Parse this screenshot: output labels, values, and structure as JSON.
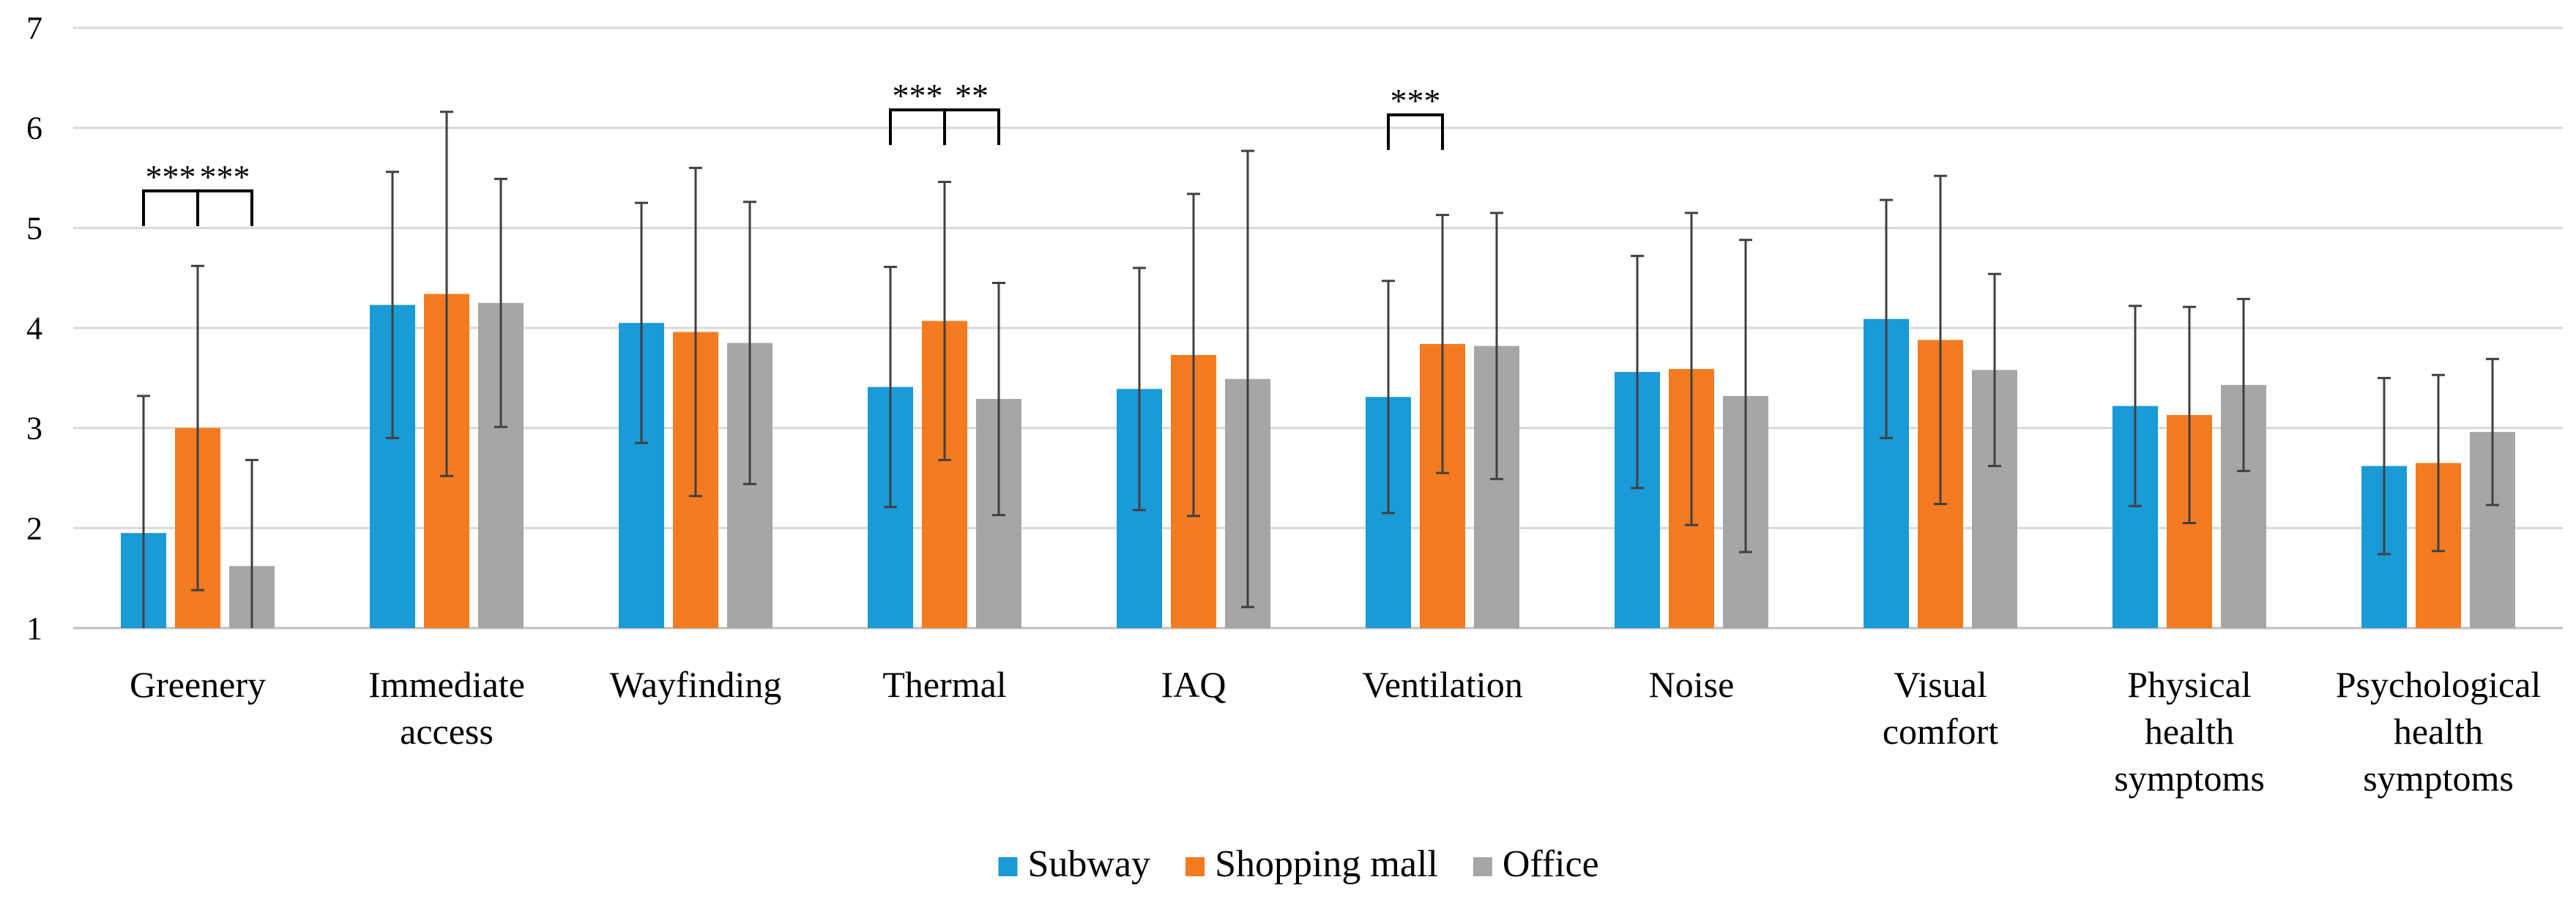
{
  "chart_data": {
    "type": "bar",
    "title": "",
    "xlabel": "",
    "ylabel": "",
    "ylim": [
      1,
      7
    ],
    "yticks": [
      1,
      2,
      3,
      4,
      5,
      6,
      7
    ],
    "grid": true,
    "legend_position": "bottom",
    "categories": [
      [
        "Greenery"
      ],
      [
        "Immediate",
        "access"
      ],
      [
        "Wayfinding"
      ],
      [
        "Thermal"
      ],
      [
        "IAQ"
      ],
      [
        "Ventilation"
      ],
      [
        "Noise"
      ],
      [
        "Visual",
        "comfort"
      ],
      [
        "Physical",
        "health",
        "symptoms"
      ],
      [
        "Psychological",
        "health",
        "symptoms"
      ]
    ],
    "series": [
      {
        "name": "Subway",
        "color": "#1a9ad6",
        "values": [
          1.95,
          4.23,
          4.05,
          3.41,
          3.39,
          3.31,
          3.56,
          4.09,
          3.22,
          2.62
        ],
        "error": [
          1.37,
          1.33,
          1.2,
          1.2,
          1.21,
          1.16,
          1.16,
          1.19,
          1.0,
          0.88
        ]
      },
      {
        "name": "Shopping mall",
        "color": "#f47b20",
        "values": [
          3.0,
          4.34,
          3.96,
          4.07,
          3.73,
          3.84,
          3.59,
          3.88,
          3.13,
          2.65
        ],
        "error": [
          1.62,
          1.82,
          1.64,
          1.39,
          1.61,
          1.29,
          1.56,
          1.64,
          1.08,
          0.88
        ]
      },
      {
        "name": "Office",
        "color": "#a6a6a6",
        "values": [
          1.62,
          4.25,
          3.85,
          3.29,
          3.49,
          3.82,
          3.32,
          3.58,
          3.43,
          2.96
        ],
        "error": [
          1.06,
          1.24,
          1.41,
          1.16,
          2.28,
          1.33,
          1.56,
          0.96,
          0.86,
          0.73
        ]
      }
    ],
    "significance": [
      {
        "category": 0,
        "from": 0,
        "to": 1,
        "label": "***",
        "level": 5.37
      },
      {
        "category": 0,
        "from": 1,
        "to": 2,
        "label": "***",
        "level": 5.37
      },
      {
        "category": 3,
        "from": 0,
        "to": 1,
        "label": "***",
        "level": 6.18
      },
      {
        "category": 3,
        "from": 1,
        "to": 2,
        "label": "**",
        "level": 6.18
      },
      {
        "category": 5,
        "from": 0,
        "to": 1,
        "label": "***",
        "level": 6.13
      }
    ]
  }
}
